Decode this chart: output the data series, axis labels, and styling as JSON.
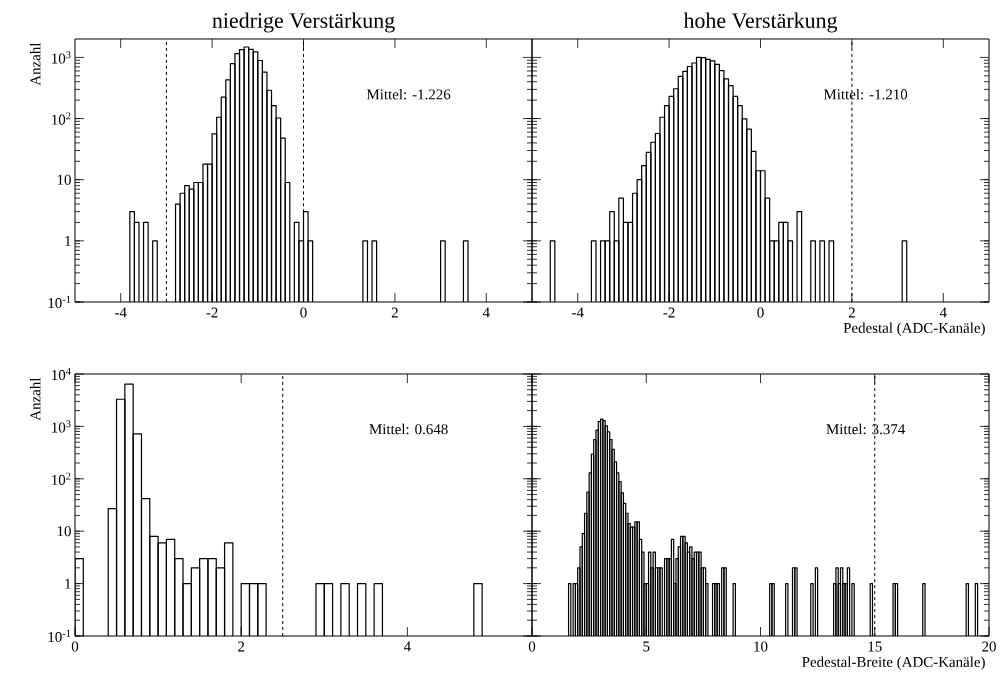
{
  "chart_data": [
    {
      "type": "histogram",
      "title": "niedrige Verstärkung",
      "ylabel": "Anzahl",
      "color": "#000000",
      "log": true,
      "xlim": [
        -5,
        5
      ],
      "ylim": [
        0.1,
        2000
      ],
      "xticks": [
        -4,
        -2,
        0,
        2,
        4
      ],
      "yticks": [
        {
          "value": 0.1,
          "label": "10$^{-1}$"
        },
        1,
        10,
        {
          "value": 100,
          "label": "10$^{2}$"
        },
        {
          "value": 1000,
          "label": "10$^{3}$"
        }
      ],
      "bins": [
        -3.8,
        -3.7,
        -3.6,
        -3.5,
        -3.4,
        -3.3,
        -3.2,
        -2.8,
        -2.7,
        -2.6,
        -2.5,
        -2.4,
        -2.3,
        -2.2,
        -2.1,
        -2.0,
        -1.9,
        -1.8,
        -1.7,
        -1.6,
        -1.5,
        -1.4,
        -1.3,
        -1.2,
        -1.1,
        -1.0,
        -0.9,
        -0.8,
        -0.7,
        -0.6,
        -0.5,
        -0.4,
        -0.3,
        -0.2,
        -0.1,
        0.0,
        0.1,
        0.2,
        1.3,
        1.4,
        1.5,
        1.6,
        3.0,
        3.1,
        3.5,
        3.6
      ],
      "values": [
        3,
        2,
        null,
        2,
        null,
        1,
        null,
        4,
        6,
        8,
        7,
        9,
        9,
        18,
        18,
        56,
        105,
        224,
        430,
        790,
        1150,
        1340,
        1480,
        1350,
        1230,
        890,
        575,
        290,
        163,
        102,
        48,
        9,
        null,
        2,
        1,
        3,
        1,
        null,
        1,
        null,
        1,
        null,
        1,
        null,
        1
      ],
      "ref_lines": [
        {
          "axis": "x",
          "value": -3,
          "line_style": "dashed"
        },
        {
          "axis": "x",
          "value": 0,
          "line_style": "dashed"
        }
      ],
      "annotations": [
        "Mittel: -1.226"
      ]
    },
    {
      "type": "histogram",
      "title": "hohe Verstärkung",
      "xlabel": "Pedestal (ADC-Kanäle)",
      "color": "#000000",
      "log": true,
      "xlim": [
        -5,
        5
      ],
      "ylim": [
        0.1,
        2000
      ],
      "tick_labels": "x",
      "xticks": [
        -4,
        -2,
        0,
        2,
        4
      ],
      "yticks": [
        {
          "value": 0.1,
          "label": null
        },
        {
          "value": 1,
          "label": null
        },
        {
          "value": 10,
          "label": null
        },
        {
          "value": 100,
          "label": null
        },
        {
          "value": 1000,
          "label": null
        }
      ],
      "bins": [
        -4.6,
        -4.5,
        -3.7,
        -3.6,
        -3.5,
        -3.4,
        -3.3,
        -3.2,
        -3.1,
        -3.0,
        -2.9,
        -2.8,
        -2.7,
        -2.6,
        -2.5,
        -2.4,
        -2.3,
        -2.2,
        -2.1,
        -2.0,
        -1.9,
        -1.8,
        -1.7,
        -1.6,
        -1.5,
        -1.4,
        -1.3,
        -1.2,
        -1.1,
        -1.0,
        -0.9,
        -0.8,
        -0.7,
        -0.6,
        -0.5,
        -0.4,
        -0.3,
        -0.2,
        -0.1,
        0.0,
        0.1,
        0.2,
        0.3,
        0.4,
        0.5,
        0.6,
        0.7,
        0.8,
        0.9,
        1.1,
        1.2,
        1.3,
        1.4,
        1.5,
        1.6,
        3.1,
        3.2
      ],
      "values": [
        1,
        null,
        1,
        null,
        1,
        1,
        3,
        1,
        5,
        2,
        2,
        6,
        10,
        17,
        28,
        41,
        57,
        105,
        163,
        230,
        307,
        490,
        590,
        710,
        810,
        1000,
        990,
        930,
        880,
        770,
        610,
        445,
        345,
        230,
        163,
        99,
        67,
        29,
        14,
        14,
        5,
        1,
        1,
        2,
        2,
        1,
        null,
        3,
        null,
        1,
        null,
        1,
        null,
        1,
        null,
        1
      ],
      "ref_lines": [
        {
          "axis": "x",
          "value": 2,
          "line_style": "dashed"
        }
      ],
      "annotations": [
        "Mittel: -1.210"
      ]
    },
    {
      "type": "histogram",
      "ylabel": "Anzahl",
      "color": "#000000",
      "log": true,
      "xlim": [
        0,
        5.5
      ],
      "ylim": [
        0.1,
        10000
      ],
      "xticks": [
        0,
        2,
        4
      ],
      "yticks": [
        {
          "value": 0.1,
          "label": "10$^{-1}$"
        },
        1,
        10,
        {
          "value": 100,
          "label": "10$^{2}$"
        },
        {
          "value": 1000,
          "label": "10$^{3}$"
        },
        {
          "value": 10000,
          "label": "10$^{4}$"
        }
      ],
      "bins": [
        0,
        0.1,
        0.4,
        0.5,
        0.6,
        0.7,
        0.8,
        0.9,
        1.0,
        1.1,
        1.2,
        1.3,
        1.4,
        1.5,
        1.6,
        1.7,
        1.8,
        1.9,
        2.0,
        2.1,
        2.2,
        2.3,
        2.9,
        3.0,
        3.1,
        3.2,
        3.3,
        3.4,
        3.5,
        3.6,
        3.7,
        4.8,
        4.9
      ],
      "values": [
        3,
        null,
        27,
        3300,
        6400,
        720,
        42,
        8,
        6,
        7,
        3,
        1,
        2,
        3,
        3,
        2,
        6,
        null,
        1,
        1,
        1,
        null,
        1,
        1,
        null,
        1,
        null,
        1,
        null,
        1,
        null,
        1
      ],
      "ref_lines": [
        {
          "axis": "x",
          "value": 2.5,
          "line_style": "dashed"
        }
      ],
      "annotations": [
        "Mittel: 0.648"
      ]
    },
    {
      "type": "histogram",
      "xlabel": "Pedestal-Breite (ADC-Kanäle)",
      "color": "#000000",
      "log": true,
      "xlim": [
        0,
        20
      ],
      "ylim": [
        0.1,
        10000
      ],
      "tick_labels": "x",
      "xticks": [
        0,
        5,
        10,
        15,
        20
      ],
      "yticks": [
        {
          "value": 0.1,
          "label": null
        },
        {
          "value": 1,
          "label": null
        },
        {
          "value": 10,
          "label": null
        },
        {
          "value": 100,
          "label": null
        },
        {
          "value": 1000,
          "label": null
        },
        {
          "value": 10000,
          "label": null
        }
      ],
      "bins": [
        1.6,
        1.7,
        1.8,
        1.9,
        2.0,
        2.1,
        2.2,
        2.3,
        2.4,
        2.5,
        2.6,
        2.7,
        2.8,
        2.9,
        3.0,
        3.1,
        3.2,
        3.3,
        3.4,
        3.5,
        3.6,
        3.7,
        3.8,
        3.9,
        4.0,
        4.1,
        4.2,
        4.3,
        4.4,
        4.5,
        4.6,
        4.7,
        4.8,
        4.9,
        5.0,
        5.1,
        5.2,
        5.3,
        5.4,
        5.5,
        5.6,
        5.7,
        5.8,
        5.9,
        6.0,
        6.1,
        6.2,
        6.3,
        6.4,
        6.5,
        6.6,
        6.7,
        6.8,
        6.9,
        7.0,
        7.1,
        7.2,
        7.3,
        7.4,
        7.5,
        7.6,
        7.7,
        7.9,
        8.0,
        8.1,
        8.2,
        8.3,
        8.4,
        8.5,
        8.8,
        8.9,
        10.4,
        10.5,
        10.6,
        11.1,
        11.2,
        11.4,
        11.5,
        11.6,
        12.2,
        12.3,
        12.4,
        12.5,
        13.2,
        13.3,
        13.4,
        13.5,
        13.6,
        13.7,
        13.8,
        13.9,
        14.0,
        14.1,
        14.8,
        14.9,
        15.8,
        15.9,
        16.0,
        17.1,
        17.2,
        19.0,
        19.1,
        19.4,
        19.5
      ],
      "values": [
        1,
        null,
        1,
        1,
        2,
        5,
        9,
        22,
        56,
        130,
        296,
        560,
        850,
        1230,
        1380,
        1290,
        1020,
        790,
        560,
        365,
        210,
        130,
        88,
        54,
        34,
        22,
        14,
        12,
        12,
        15,
        15,
        7,
        4,
        1,
        1,
        4,
        2,
        4,
        2,
        2,
        2,
        null,
        3,
        3,
        3,
        7,
        1,
        3,
        5,
        8,
        8,
        6,
        4,
        5,
        3,
        4,
        4,
        4,
        2,
        2,
        1,
        null,
        1,
        1,
        1,
        null,
        2,
        2,
        null,
        1,
        null,
        1,
        1,
        null,
        1,
        null,
        2,
        2,
        null,
        1,
        null,
        2,
        null,
        1,
        2,
        1,
        2,
        1,
        1,
        2,
        null,
        1,
        null,
        1,
        null,
        1,
        1,
        null,
        1,
        null,
        1,
        null,
        1
      ],
      "ref_lines": [
        {
          "axis": "x",
          "value": 15,
          "line_style": "dashed"
        }
      ],
      "annotations": [
        "Mittel: 3.374"
      ]
    }
  ]
}
